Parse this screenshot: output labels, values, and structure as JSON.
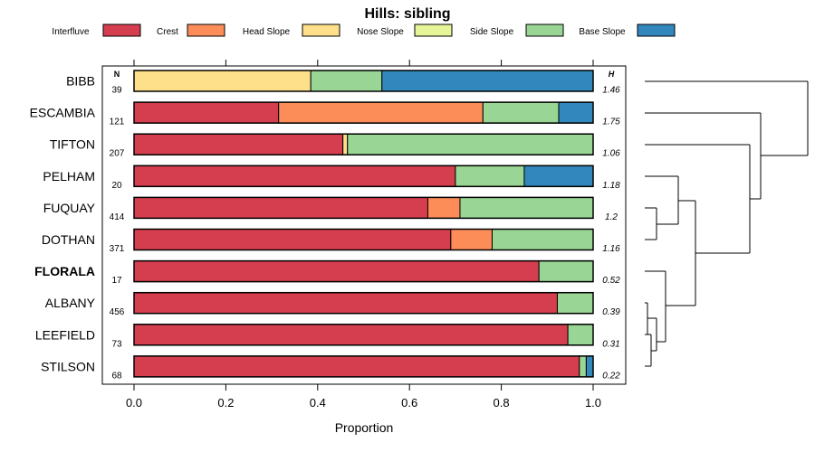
{
  "chart_data": {
    "type": "bar",
    "subtype": "stacked-horizontal-proportion",
    "title": "Hills: sibling",
    "xlabel": "Proportion",
    "ylabel": "",
    "xlim": [
      0,
      1
    ],
    "xticks": [
      "0.0",
      "0.2",
      "0.4",
      "0.6",
      "0.8",
      "1.0"
    ],
    "n_header": "N",
    "h_header": "H",
    "legend_position": "top",
    "highlight": "FLORALA",
    "legend": [
      {
        "name": "Interfluve",
        "color": "#d53e4f"
      },
      {
        "name": "Crest",
        "color": "#fc8d59"
      },
      {
        "name": "Head Slope",
        "color": "#fee08b"
      },
      {
        "name": "Nose Slope",
        "color": "#e6f598"
      },
      {
        "name": "Side Slope",
        "color": "#99d594"
      },
      {
        "name": "Base Slope",
        "color": "#3288bd"
      }
    ],
    "categories": [
      "BIBB",
      "ESCAMBIA",
      "TIFTON",
      "PELHAM",
      "FUQUAY",
      "DOTHAN",
      "FLORALA",
      "ALBANY",
      "LEEFIELD",
      "STILSON"
    ],
    "n": [
      "39",
      "121",
      "207",
      "20",
      "414",
      "371",
      "17",
      "456",
      "73",
      "68"
    ],
    "h": [
      "1.46",
      "1.75",
      "1.06",
      "1.18",
      "1.2",
      "1.16",
      "0.52",
      "0.39",
      "0.31",
      "0.22"
    ],
    "series": [
      {
        "name": "Interfluve",
        "values": [
          0.0,
          0.315,
          0.455,
          0.7,
          0.64,
          0.69,
          0.882,
          0.922,
          0.945,
          0.97
        ]
      },
      {
        "name": "Crest",
        "values": [
          0.0,
          0.445,
          0.0,
          0.0,
          0.07,
          0.09,
          0.0,
          0.0,
          0.0,
          0.0
        ]
      },
      {
        "name": "Head Slope",
        "values": [
          0.385,
          0.0,
          0.01,
          0.0,
          0.0,
          0.0,
          0.0,
          0.0,
          0.0,
          0.0
        ]
      },
      {
        "name": "Nose Slope",
        "values": [
          0.0,
          0.0,
          0.0,
          0.0,
          0.0,
          0.0,
          0.0,
          0.0,
          0.0,
          0.0
        ]
      },
      {
        "name": "Side Slope",
        "values": [
          0.155,
          0.165,
          0.535,
          0.15,
          0.29,
          0.22,
          0.118,
          0.078,
          0.055,
          0.015
        ]
      },
      {
        "name": "Base Slope",
        "values": [
          0.46,
          0.075,
          0.0,
          0.15,
          0.0,
          0.0,
          0.0,
          0.0,
          0.0,
          0.015
        ]
      }
    ]
  }
}
